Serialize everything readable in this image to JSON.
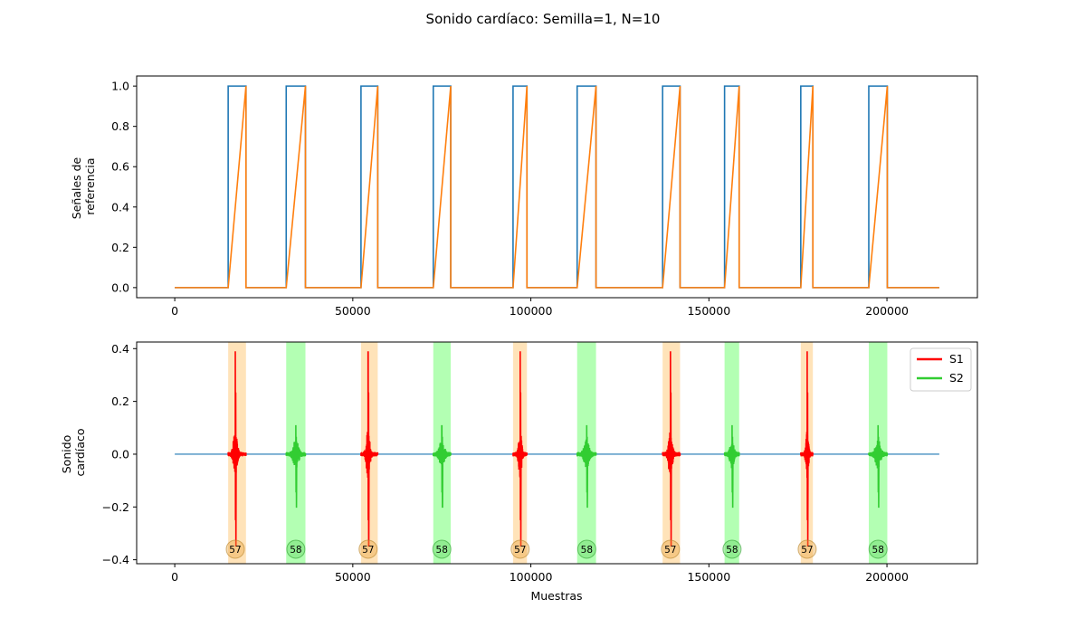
{
  "figure_title": "Sonido cardíaco: Semilla=1, N=10",
  "colors": {
    "reference_line": "#1f77b4",
    "ramp_line": "#ff7f0e",
    "s1": "#ff0000",
    "s2": "#32cd32",
    "s1_band": "#ffdead",
    "s2_band": "#b3ffb3",
    "baseline": "#1f77b4"
  },
  "chart_data": [
    {
      "type": "line",
      "ylabel_lines": [
        "Señales de",
        "referencia"
      ],
      "xlabel": "",
      "xlim": [
        -10700,
        225400
      ],
      "ylim": [
        -0.05,
        1.05
      ],
      "xticks": [
        0,
        50000,
        100000,
        150000,
        200000
      ],
      "yticks": [
        0.0,
        0.2,
        0.4,
        0.6,
        0.8,
        1.0
      ],
      "xtick_labels": [
        "0",
        "50000",
        "100000",
        "150000",
        "200000"
      ],
      "ytick_labels": [
        "0.0",
        "0.2",
        "0.4",
        "0.6",
        "0.8",
        "1.0"
      ],
      "x_end": 214700,
      "series": [
        {
          "kind": "pulse",
          "segments": [
            [
              15000,
              20000
            ],
            [
              31300,
              36700
            ],
            [
              52300,
              57000
            ],
            [
              72600,
              77500
            ],
            [
              95000,
              98900
            ],
            [
              113000,
              118300
            ],
            [
              137000,
              141900
            ],
            [
              154400,
              158500
            ],
            [
              175800,
              179200
            ],
            [
              194900,
              200100
            ]
          ]
        },
        {
          "kind": "ramp",
          "segments": [
            [
              15000,
              20000
            ],
            [
              31300,
              36700
            ],
            [
              52300,
              57000
            ],
            [
              72600,
              77500
            ],
            [
              95000,
              98900
            ],
            [
              113000,
              118300
            ],
            [
              137000,
              141900
            ],
            [
              154400,
              158500
            ],
            [
              175800,
              179200
            ],
            [
              194900,
              200100
            ]
          ]
        }
      ]
    },
    {
      "type": "line",
      "xlabel": "Muestras",
      "ylabel_lines": [
        "Sonido",
        "cardíaco"
      ],
      "xlim": [
        -10700,
        225400
      ],
      "ylim": [
        -0.415,
        0.425
      ],
      "xticks": [
        0,
        50000,
        100000,
        150000,
        200000
      ],
      "yticks": [
        -0.4,
        -0.2,
        0.0,
        0.2,
        0.4
      ],
      "xtick_labels": [
        "0",
        "50000",
        "100000",
        "150000",
        "200000"
      ],
      "ytick_labels": [
        "−0.4",
        "−0.2",
        "0.0",
        "0.2",
        "0.4"
      ],
      "x_end": 214700,
      "legend": [
        {
          "name": "S1",
          "color": "#ff0000"
        },
        {
          "name": "S2",
          "color": "#32cd32"
        }
      ],
      "legend_position": "top-right",
      "events": [
        {
          "type": "S1",
          "start": 15000,
          "end": 20000,
          "center": 17000,
          "peak": 0.39,
          "trough": -0.25,
          "badge": "57"
        },
        {
          "type": "S2",
          "start": 31300,
          "end": 36700,
          "center": 34000,
          "peak": 0.11,
          "trough": -0.145,
          "badge": "58"
        },
        {
          "type": "S1",
          "start": 52300,
          "end": 57000,
          "center": 54300,
          "peak": 0.39,
          "trough": -0.25,
          "badge": "57"
        },
        {
          "type": "S2",
          "start": 72600,
          "end": 77500,
          "center": 75000,
          "peak": 0.11,
          "trough": -0.145,
          "badge": "58"
        },
        {
          "type": "S1",
          "start": 95000,
          "end": 98900,
          "center": 97000,
          "peak": 0.39,
          "trough": -0.25,
          "badge": "57"
        },
        {
          "type": "S2",
          "start": 113000,
          "end": 118300,
          "center": 115700,
          "peak": 0.11,
          "trough": -0.145,
          "badge": "58"
        },
        {
          "type": "S1",
          "start": 137000,
          "end": 141900,
          "center": 139200,
          "peak": 0.39,
          "trough": -0.25,
          "badge": "57"
        },
        {
          "type": "S2",
          "start": 154400,
          "end": 158500,
          "center": 156500,
          "peak": 0.11,
          "trough": -0.145,
          "badge": "58"
        },
        {
          "type": "S1",
          "start": 175800,
          "end": 179200,
          "center": 177600,
          "peak": 0.39,
          "trough": -0.25,
          "badge": "57"
        },
        {
          "type": "S2",
          "start": 194900,
          "end": 200100,
          "center": 197500,
          "peak": 0.11,
          "trough": -0.145,
          "badge": "58"
        }
      ],
      "badge_y": -0.36
    }
  ]
}
